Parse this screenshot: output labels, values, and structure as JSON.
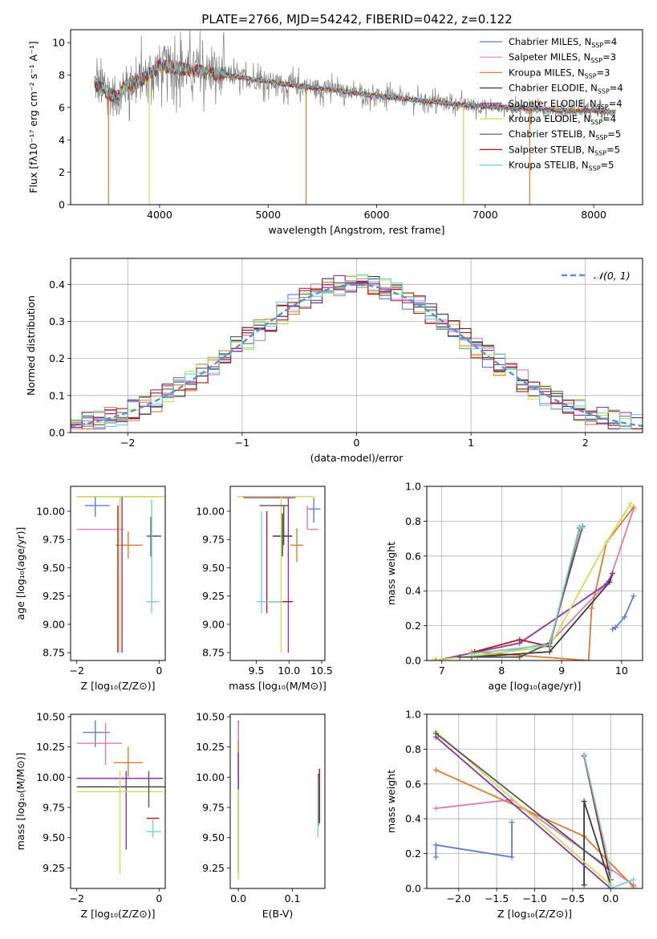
{
  "figure_title": "PLATE=2766, MJD=54242, FIBERID=0422, z=0.122",
  "colors": {
    "chabrier_miles": "#5b7fd1",
    "salpeter_miles": "#e07bb4",
    "kroupa_miles": "#e07b2c",
    "chabrier_elodie": "#3a3a3a",
    "salpeter_elodie": "#9030a8",
    "kroupa_elodie": "#c8e050",
    "chabrier_stelib": "#555555",
    "salpeter_stelib": "#b01818",
    "kroupa_stelib": "#70d0d8",
    "gauss": "#5b8fd9",
    "grid": "#b0b0b0"
  },
  "chart_data": [
    {
      "id": "spectrum",
      "type": "line",
      "title": "PLATE=2766, MJD=54242, FIBERID=0422, z=0.122",
      "xlabel": "wavelength [Angstrom, rest frame]",
      "ylabel": "Flux [fλ10⁻¹⁷ erg cm⁻² s⁻¹ A⁻¹]",
      "xlim": [
        3180,
        8450
      ],
      "ylim": [
        0,
        10.8
      ],
      "xticks": [
        4000,
        5000,
        6000,
        7000,
        8000
      ],
      "yticks": [
        0,
        2,
        4,
        6,
        8,
        10
      ],
      "grid": false,
      "legend": "top-right",
      "data_curve": {
        "x": [
          3400,
          3500,
          3600,
          3700,
          3800,
          3900,
          4000,
          4100,
          4200,
          4300,
          4400,
          4500,
          4700,
          5000,
          5300,
          5600,
          6000,
          6300,
          6600,
          6900,
          7200,
          7500,
          7800,
          8000,
          8200
        ],
        "y": [
          7.5,
          7.0,
          6.6,
          7.4,
          7.6,
          8.0,
          8.6,
          8.5,
          8.4,
          8.3,
          8.2,
          8.1,
          7.9,
          7.6,
          7.3,
          7.1,
          6.7,
          6.5,
          6.3,
          6.1,
          6.0,
          5.9,
          5.8,
          5.8,
          5.7
        ]
      },
      "dips": [
        {
          "x": 3530,
          "y": 0
        },
        {
          "x": 3905,
          "y": 0
        },
        {
          "x": 5350,
          "y": 0
        },
        {
          "x": 6800,
          "y": 0
        },
        {
          "x": 7410,
          "y": 0
        }
      ],
      "series": [
        {
          "name": "Chabrier MILES, N",
          "sub": "SSP",
          "suffix": "=4",
          "color_key": "chabrier_miles"
        },
        {
          "name": "Salpeter MILES, N",
          "sub": "SSP",
          "suffix": "=3",
          "color_key": "salpeter_miles"
        },
        {
          "name": "Kroupa MILES, N",
          "sub": "SSP",
          "suffix": "=3",
          "color_key": "kroupa_miles"
        },
        {
          "name": "Chabrier ELODIE, N",
          "sub": "SSP",
          "suffix": "=4",
          "color_key": "chabrier_elodie"
        },
        {
          "name": "Salpeter ELODIE, N",
          "sub": "SSP",
          "suffix": "=4",
          "color_key": "salpeter_elodie"
        },
        {
          "name": "Kroupa ELODIE, N",
          "sub": "SSP",
          "suffix": "=4",
          "color_key": "kroupa_elodie"
        },
        {
          "name": "Chabrier STELIB, N",
          "sub": "SSP",
          "suffix": "=5",
          "color_key": "chabrier_stelib"
        },
        {
          "name": "Salpeter STELIB, N",
          "sub": "SSP",
          "suffix": "=5",
          "color_key": "salpeter_stelib"
        },
        {
          "name": "Kroupa STELIB, N",
          "sub": "SSP",
          "suffix": "=5",
          "color_key": "kroupa_stelib"
        }
      ]
    },
    {
      "id": "residuals",
      "type": "line",
      "xlabel": "(data-model)/error",
      "ylabel": "Normed distribution",
      "xlim": [
        -2.5,
        2.5
      ],
      "ylim": [
        0,
        0.47
      ],
      "xticks": [
        -2,
        -1,
        0,
        1,
        2
      ],
      "yticks": [
        0.0,
        0.1,
        0.2,
        0.3,
        0.4
      ],
      "grid": true,
      "legend": "top-right",
      "legend_label": "𝒩(0, 1)",
      "gaussian": {
        "mean": 0,
        "sigma": 1
      },
      "bin_width": 0.1
    },
    {
      "id": "age_vs_Z",
      "type": "scatter",
      "xlabel": "Z [log₁₀(Z/Z⊙)]",
      "ylabel": "age  [log₁₀(age/yr)]",
      "xlim": [
        -2.15,
        0.15
      ],
      "ylim": [
        8.68,
        10.22
      ],
      "xticks": [
        -2,
        0
      ],
      "yticks": [
        8.75,
        9.0,
        9.25,
        9.5,
        9.75,
        10.0
      ],
      "points": [
        {
          "color_key": "chabrier_miles",
          "x": -1.55,
          "y": 10.05,
          "xlo": -1.8,
          "xhi": -1.2,
          "ylo": 9.95,
          "yhi": 10.13
        },
        {
          "color_key": "salpeter_miles",
          "x": -1.3,
          "y": 9.84,
          "xlo": -2.0,
          "xhi": -0.85,
          "ylo": 9.84,
          "yhi": 9.84
        },
        {
          "color_key": "kroupa_miles",
          "x": -0.75,
          "y": 9.7,
          "xlo": -1.05,
          "xhi": -0.4,
          "ylo": 9.58,
          "yhi": 9.82
        },
        {
          "color_key": "chabrier_elodie",
          "x": -0.3,
          "y": 10.13,
          "xlo": -2.0,
          "xhi": 0.1,
          "ylo": 10.13,
          "yhi": 10.13
        },
        {
          "color_key": "salpeter_elodie",
          "x": -0.9,
          "y": 10.13,
          "xlo": -2.0,
          "xhi": 0.1,
          "ylo": 8.75,
          "yhi": 10.13
        },
        {
          "color_key": "kroupa_elodie",
          "x": -0.95,
          "y": 10.13,
          "xlo": -2.0,
          "xhi": 0.15,
          "ylo": 8.75,
          "yhi": 10.13
        },
        {
          "color_key": "chabrier_stelib",
          "x": -0.2,
          "y": 9.78,
          "xlo": -0.3,
          "xhi": 0.05,
          "ylo": 9.6,
          "yhi": 9.95
        },
        {
          "color_key": "salpeter_stelib",
          "x": -1.0,
          "y": 10.05,
          "xlo": -1.0,
          "xhi": -1.0,
          "ylo": 8.75,
          "yhi": 10.05
        },
        {
          "color_key": "kroupa_stelib",
          "x": -0.18,
          "y": 9.2,
          "xlo": -0.3,
          "xhi": 0.0,
          "ylo": 9.1,
          "yhi": 10.1
        }
      ]
    },
    {
      "id": "age_vs_mass",
      "type": "scatter",
      "xlabel": "mass [log₁₀(M/M⊙)]",
      "ylabel": "",
      "xlim": [
        9.1,
        10.55
      ],
      "ylim": [
        8.68,
        10.22
      ],
      "xticks": [
        9.5,
        10.0,
        10.5
      ],
      "yticks": [
        8.75,
        9.0,
        9.25,
        9.5,
        9.75,
        10.0
      ],
      "points": [
        {
          "color_key": "chabrier_miles",
          "x": 10.38,
          "y": 10.02,
          "xlo": 10.28,
          "xhi": 10.48,
          "ylo": 9.9,
          "yhi": 10.12
        },
        {
          "color_key": "salpeter_miles",
          "x": 10.28,
          "y": 9.84,
          "xlo": 10.28,
          "xhi": 10.45,
          "ylo": 9.84,
          "yhi": 10.05
        },
        {
          "color_key": "kroupa_miles",
          "x": 10.12,
          "y": 9.7,
          "xlo": 10.02,
          "xhi": 10.22,
          "ylo": 9.55,
          "yhi": 9.85
        },
        {
          "color_key": "chabrier_elodie",
          "x": 9.9,
          "y": 9.78,
          "xlo": 9.75,
          "xhi": 10.05,
          "ylo": 9.6,
          "yhi": 9.98
        },
        {
          "color_key": "salpeter_elodie",
          "x": 9.99,
          "y": 10.12,
          "xlo": 9.3,
          "xhi": 10.1,
          "ylo": 8.75,
          "yhi": 10.12
        },
        {
          "color_key": "kroupa_elodie",
          "x": 9.88,
          "y": 10.13,
          "xlo": 9.2,
          "xhi": 10.4,
          "ylo": 8.75,
          "yhi": 10.13
        },
        {
          "color_key": "chabrier_stelib",
          "x": 9.92,
          "y": 10.05,
          "xlo": 9.55,
          "xhi": 10.0,
          "ylo": 9.7,
          "yhi": 10.05
        },
        {
          "color_key": "salpeter_stelib",
          "x": 9.66,
          "y": 9.2,
          "xlo": 9.66,
          "xhi": 10.06,
          "ylo": 9.1,
          "yhi": 10.0
        },
        {
          "color_key": "kroupa_stelib",
          "x": 9.58,
          "y": 9.2,
          "xlo": 9.5,
          "xhi": 9.9,
          "ylo": 9.1,
          "yhi": 10.0
        }
      ]
    },
    {
      "id": "weight_vs_age",
      "type": "line",
      "xlabel": "age  [log₁₀(age/yr)]",
      "ylabel": "mass weight",
      "xlim": [
        6.75,
        10.35
      ],
      "ylim": [
        0,
        1.0
      ],
      "xticks": [
        7,
        8,
        9,
        10
      ],
      "yticks": [
        0.0,
        0.2,
        0.4,
        0.6,
        0.8,
        1.0
      ],
      "grid": true,
      "series": [
        {
          "color_key": "chabrier_miles",
          "x": [
            9.85,
            9.9,
            10.05,
            10.2
          ],
          "y": [
            0.18,
            0.19,
            0.25,
            0.37
          ]
        },
        {
          "color_key": "salpeter_miles",
          "x": [
            7.6,
            8.8,
            9.8,
            10.2
          ],
          "y": [
            0.02,
            0.1,
            0.46,
            0.87
          ]
        },
        {
          "color_key": "kroupa_miles",
          "x": [
            7.5,
            9.45,
            9.5,
            9.75,
            10.2
          ],
          "y": [
            0.05,
            0.0,
            0.3,
            0.68,
            0.88
          ]
        },
        {
          "color_key": "chabrier_elodie",
          "x": [
            7.5,
            8.8,
            9.8,
            9.85
          ],
          "y": [
            0.02,
            0.05,
            0.45,
            0.5
          ]
        },
        {
          "color_key": "salpeter_elodie",
          "x": [
            6.9,
            8.3,
            9.75,
            9.85
          ],
          "y": [
            0.0,
            0.1,
            0.44,
            0.5
          ]
        },
        {
          "color_key": "kroupa_elodie",
          "x": [
            6.85,
            8.8,
            9.75,
            10.15
          ],
          "y": [
            0.0,
            0.08,
            0.68,
            0.9
          ]
        },
        {
          "color_key": "chabrier_stelib",
          "x": [
            7.3,
            8.3,
            8.8,
            9.35
          ],
          "y": [
            0.02,
            0.02,
            0.1,
            0.77
          ]
        },
        {
          "color_key": "salpeter_stelib",
          "x": [
            7.55,
            8.3,
            8.8,
            9.3
          ],
          "y": [
            0.05,
            0.12,
            0.08,
            0.76
          ]
        },
        {
          "color_key": "kroupa_stelib",
          "x": [
            7.5,
            8.8,
            9.3,
            9.35
          ],
          "y": [
            0.04,
            0.09,
            0.77,
            0.76
          ]
        }
      ]
    },
    {
      "id": "mass_vs_Z",
      "type": "scatter",
      "xlabel": "Z [log₁₀(Z/Z⊙)]",
      "ylabel": "mass [log₁₀(M/M⊙)]",
      "xlim": [
        -2.15,
        0.15
      ],
      "ylim": [
        9.08,
        10.52
      ],
      "xticks": [
        -2,
        0
      ],
      "yticks": [
        9.25,
        9.5,
        9.75,
        10.0,
        10.25,
        10.5
      ],
      "points": [
        {
          "color_key": "chabrier_miles",
          "x": -1.55,
          "y": 10.37,
          "xlo": -1.85,
          "xhi": -1.2,
          "ylo": 10.25,
          "yhi": 10.47
        },
        {
          "color_key": "salpeter_miles",
          "x": -1.3,
          "y": 10.28,
          "xlo": -2.0,
          "xhi": -0.9,
          "ylo": 10.1,
          "yhi": 10.45
        },
        {
          "color_key": "kroupa_miles",
          "x": -0.75,
          "y": 10.12,
          "xlo": -1.1,
          "xhi": -0.4,
          "ylo": 10.0,
          "yhi": 10.25
        },
        {
          "color_key": "chabrier_elodie",
          "x": -0.3,
          "y": 9.92,
          "xlo": -2.0,
          "xhi": 0.15,
          "ylo": 9.92,
          "yhi": 9.92
        },
        {
          "color_key": "salpeter_elodie",
          "x": -0.8,
          "y": 9.99,
          "xlo": -2.0,
          "xhi": 0.1,
          "ylo": 9.4,
          "yhi": 10.05
        },
        {
          "color_key": "kroupa_elodie",
          "x": -0.95,
          "y": 9.88,
          "xlo": -2.0,
          "xhi": 0.1,
          "ylo": 9.2,
          "yhi": 10.05
        },
        {
          "color_key": "chabrier_stelib",
          "x": -0.25,
          "y": 9.92,
          "xlo": -0.3,
          "xhi": 0.0,
          "ylo": 9.75,
          "yhi": 10.05
        },
        {
          "color_key": "salpeter_stelib",
          "x": -0.2,
          "y": 9.66,
          "xlo": -0.3,
          "xhi": 0.0,
          "ylo": 9.66,
          "yhi": 9.66
        },
        {
          "color_key": "kroupa_stelib",
          "x": -0.15,
          "y": 9.55,
          "xlo": -0.3,
          "xhi": 0.05,
          "ylo": 9.5,
          "yhi": 9.65
        }
      ]
    },
    {
      "id": "mass_vs_EBV",
      "type": "scatter",
      "xlabel": "E(B-V)",
      "ylabel": "",
      "xlim": [
        -0.015,
        0.16
      ],
      "ylim": [
        9.08,
        10.52
      ],
      "xticks": [
        0.0,
        0.1
      ],
      "yticks": [
        9.25,
        9.5,
        9.75,
        10.0,
        10.25,
        10.5
      ],
      "points": [
        {
          "color_key": "chabrier_miles",
          "x": 0.0,
          "y": 10.37,
          "xlo": 0.0,
          "xhi": 0.0,
          "ylo": 10.0,
          "yhi": 10.47
        },
        {
          "color_key": "salpeter_miles",
          "x": 0.0,
          "y": 10.28,
          "xlo": 0.0,
          "xhi": 0.0,
          "ylo": 10.0,
          "yhi": 10.45
        },
        {
          "color_key": "kroupa_miles",
          "x": 0.0,
          "y": 10.12,
          "xlo": 0.0,
          "xhi": 0.0,
          "ylo": 10.0,
          "yhi": 10.3
        },
        {
          "color_key": "chabrier_elodie",
          "x": 0.0,
          "y": 9.92,
          "xlo": 0.0,
          "xhi": 0.0,
          "ylo": 9.2,
          "yhi": 10.0
        },
        {
          "color_key": "salpeter_elodie",
          "x": 0.0,
          "y": 9.99,
          "xlo": 0.0,
          "xhi": 0.0,
          "ylo": 9.9,
          "yhi": 10.2
        },
        {
          "color_key": "kroupa_elodie",
          "x": 0.0,
          "y": 9.5,
          "xlo": 0.0,
          "xhi": 0.0,
          "ylo": 9.15,
          "yhi": 9.9
        },
        {
          "color_key": "chabrier_stelib",
          "x": 0.148,
          "y": 9.9,
          "xlo": 0.148,
          "xhi": 0.148,
          "ylo": 9.6,
          "yhi": 10.03
        },
        {
          "color_key": "salpeter_stelib",
          "x": 0.15,
          "y": 9.75,
          "xlo": 0.15,
          "xhi": 0.15,
          "ylo": 9.62,
          "yhi": 10.07
        },
        {
          "color_key": "kroupa_stelib",
          "x": 0.147,
          "y": 9.55,
          "xlo": 0.147,
          "xhi": 0.147,
          "ylo": 9.5,
          "yhi": 10.0
        }
      ]
    },
    {
      "id": "weight_vs_Z",
      "type": "line",
      "xlabel": "Z [log₁₀(Z/Z⊙)]",
      "ylabel": "mass weight",
      "xlim": [
        -2.42,
        0.42
      ],
      "ylim": [
        0,
        1.0
      ],
      "xticks": [
        -2.0,
        -1.5,
        -1.0,
        -0.5,
        0.0
      ],
      "yticks": [
        0.0,
        0.2,
        0.4,
        0.6,
        0.8,
        1.0
      ],
      "grid": true,
      "series": [
        {
          "color_key": "chabrier_miles",
          "x": [
            -2.3,
            -2.3,
            -1.3,
            -1.3
          ],
          "y": [
            0.18,
            0.25,
            0.18,
            0.38
          ]
        },
        {
          "color_key": "salpeter_miles",
          "x": [
            -2.3,
            -1.3,
            0.3
          ],
          "y": [
            0.46,
            0.51,
            0.02
          ]
        },
        {
          "color_key": "kroupa_miles",
          "x": [
            -2.3,
            -0.35,
            0.3
          ],
          "y": [
            0.68,
            0.3,
            0.01
          ]
        },
        {
          "color_key": "chabrier_elodie",
          "x": [
            -0.35,
            -0.35,
            0.0
          ],
          "y": [
            0.02,
            0.5,
            0.02
          ]
        },
        {
          "color_key": "salpeter_elodie",
          "x": [
            -2.3,
            0.0
          ],
          "y": [
            0.87,
            0.0
          ]
        },
        {
          "color_key": "kroupa_elodie",
          "x": [
            -2.3,
            0.0
          ],
          "y": [
            0.9,
            0.02
          ]
        },
        {
          "color_key": "chabrier_stelib",
          "x": [
            -2.3,
            0.0
          ],
          "y": [
            0.89,
            0.1
          ]
        },
        {
          "color_key": "salpeter_stelib",
          "x": [
            -0.35,
            0.0
          ],
          "y": [
            0.76,
            0.05
          ]
        },
        {
          "color_key": "kroupa_stelib",
          "x": [
            -0.35,
            0.0,
            0.0,
            0.3
          ],
          "y": [
            0.77,
            0.1,
            0.0,
            0.05
          ]
        }
      ]
    }
  ]
}
